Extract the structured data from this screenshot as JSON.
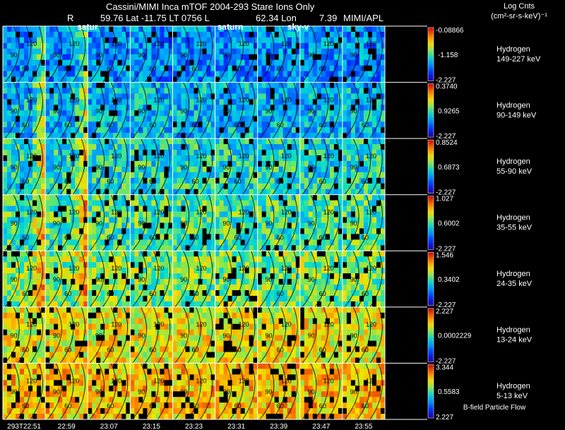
{
  "header": {
    "title": "Cassini/MIMI Inca mTOF  2004-293   Stare    Ions Only",
    "info_r": "R",
    "info_lat_lt": "59.76 Lat -11.75 LT 0756 L",
    "info_lon": "62.34 Lon",
    "info_val": "7.39",
    "info_org": "MIMI/APL",
    "overlay_labels": [
      "satur",
      "saturn",
      "sky-v"
    ]
  },
  "colorbar_title": [
    "Log Cnts",
    "(cm²-sr-s-keV)⁻¹"
  ],
  "footer_note": "B-field Particle Flow",
  "colors": {
    "background": "#000000",
    "text": "#ffffff",
    "grid": "#ffffff",
    "contour": "#000000"
  },
  "chart_data": {
    "type": "heatmap",
    "time_labels": [
      "293T22:51",
      "22:59",
      "23:07",
      "23:15",
      "23:23",
      "23:31",
      "23:39",
      "23:47",
      "23:55"
    ],
    "contour_labels": [
      "90",
      "120",
      "60"
    ],
    "rows": [
      {
        "species": "Hydrogen",
        "energy": "149-227 keV",
        "scale_max": "-0.08866",
        "scale_mid": "-1.158",
        "scale_min": "-2.227",
        "level": 0.3
      },
      {
        "species": "Hydrogen",
        "energy": "90-149 keV",
        "scale_max": "0.3740",
        "scale_mid": "0.9265",
        "scale_min": "-2.227",
        "level": 0.36
      },
      {
        "species": "Hydrogen",
        "energy": "55-90 keV",
        "scale_max": "0.8524",
        "scale_mid": "0.6873",
        "scale_min": "-2.227",
        "level": 0.44
      },
      {
        "species": "Hydrogen",
        "energy": "35-55 keV",
        "scale_max": "1.027",
        "scale_mid": "0.6002",
        "scale_min": "-2.227",
        "level": 0.5
      },
      {
        "species": "Hydrogen",
        "energy": "24-35 keV",
        "scale_max": "1.546",
        "scale_mid": "0.3402",
        "scale_min": "-2.227",
        "level": 0.56
      },
      {
        "species": "Hydrogen",
        "energy": "13-24 keV",
        "scale_max": "2.227",
        "scale_mid": "0.0002229",
        "scale_min": "-2.227",
        "level": 0.68
      },
      {
        "species": "Hydrogen",
        "energy": "5-13 keV",
        "scale_max": "3.344",
        "scale_mid": "0.5583",
        "scale_min": "2.227",
        "level": 0.74
      }
    ]
  }
}
